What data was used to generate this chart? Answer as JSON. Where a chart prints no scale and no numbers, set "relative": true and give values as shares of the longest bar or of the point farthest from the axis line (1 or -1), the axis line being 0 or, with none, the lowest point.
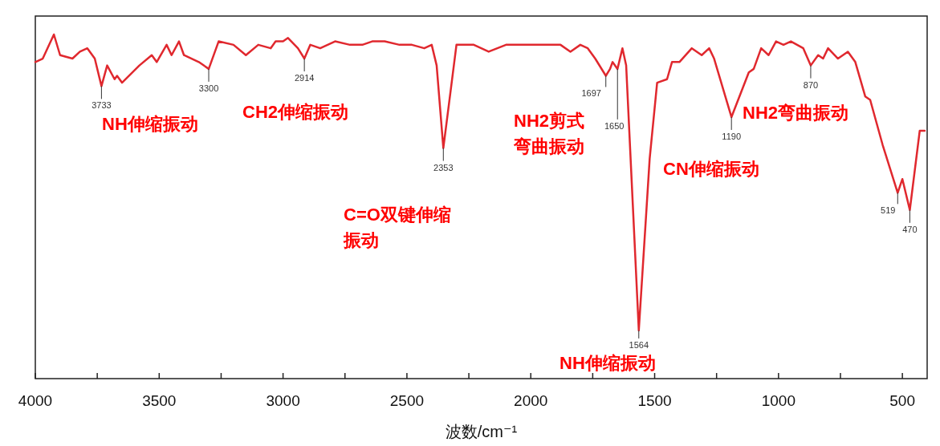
{
  "chart_data": {
    "type": "line",
    "relative": true,
    "xlabel": "波数/cm⁻¹",
    "xlim": [
      4000,
      400
    ],
    "xticks": [
      4000,
      {
        "value": 3750,
        "label": null
      },
      3500,
      {
        "value": 3250,
        "label": null
      },
      3000,
      {
        "value": 2750,
        "label": null
      },
      2500,
      {
        "value": 2250,
        "label": null
      },
      2000,
      {
        "value": 1750,
        "label": null
      },
      1500,
      {
        "value": 1250,
        "label": null
      },
      1000,
      {
        "value": 750,
        "label": null
      },
      500
    ],
    "x": [
      4000,
      3970,
      3925,
      3900,
      3850,
      3820,
      3790,
      3760,
      3733,
      3710,
      3680,
      3670,
      3650,
      3580,
      3530,
      3510,
      3470,
      3450,
      3420,
      3400,
      3340,
      3300,
      3260,
      3200,
      3150,
      3100,
      3050,
      3030,
      3000,
      2980,
      2940,
      2914,
      2890,
      2850,
      2790,
      2730,
      2680,
      2640,
      2590,
      2530,
      2480,
      2430,
      2400,
      2380,
      2353,
      2330,
      2300,
      2230,
      2170,
      2100,
      1990,
      1880,
      1840,
      1800,
      1770,
      1740,
      1697,
      1680,
      1670,
      1650,
      1630,
      1615,
      1564,
      1520,
      1490,
      1450,
      1430,
      1400,
      1350,
      1310,
      1280,
      1260,
      1190,
      1120,
      1100,
      1070,
      1040,
      1010,
      980,
      950,
      900,
      870,
      840,
      820,
      800,
      760,
      720,
      690,
      650,
      630,
      580,
      519,
      500,
      470,
      430,
      410
    ],
    "series": [
      {
        "color": "#e0282e",
        "values": [
          0.92,
          0.93,
          1.0,
          0.94,
          0.93,
          0.95,
          0.96,
          0.93,
          0.85,
          0.91,
          0.87,
          0.88,
          0.86,
          0.91,
          0.94,
          0.92,
          0.97,
          0.94,
          0.98,
          0.94,
          0.92,
          0.9,
          0.98,
          0.97,
          0.94,
          0.97,
          0.96,
          0.98,
          0.98,
          0.99,
          0.96,
          0.93,
          0.97,
          0.96,
          0.98,
          0.97,
          0.97,
          0.98,
          0.98,
          0.97,
          0.97,
          0.96,
          0.97,
          0.91,
          0.67,
          0.8,
          0.97,
          0.97,
          0.95,
          0.97,
          0.97,
          0.97,
          0.95,
          0.97,
          0.96,
          0.93,
          0.88,
          0.9,
          0.92,
          0.9,
          0.96,
          0.91,
          0.14,
          0.64,
          0.86,
          0.87,
          0.92,
          0.92,
          0.96,
          0.94,
          0.96,
          0.93,
          0.76,
          0.89,
          0.9,
          0.96,
          0.94,
          0.98,
          0.97,
          0.98,
          0.96,
          0.91,
          0.94,
          0.93,
          0.96,
          0.93,
          0.95,
          0.92,
          0.82,
          0.81,
          0.68,
          0.54,
          0.58,
          0.49,
          0.72,
          0.72
        ]
      }
    ],
    "annotations": [
      {
        "text": "3733",
        "x": 3733,
        "y": 0.85
      },
      {
        "text": "3300",
        "x": 3300,
        "y": 0.9
      },
      {
        "text": "2914",
        "x": 2914,
        "y": 0.93
      },
      {
        "text": "2353",
        "x": 2353,
        "y": 0.67
      },
      {
        "text": "1697",
        "x": 1697,
        "y": 0.88
      },
      {
        "text": "1650",
        "x": 1650,
        "y": 0.9
      },
      {
        "text": "1564",
        "x": 1564,
        "y": 0.14
      },
      {
        "text": "1190",
        "x": 1190,
        "y": 0.76
      },
      {
        "text": "870",
        "x": 870,
        "y": 0.91
      },
      {
        "text": "519",
        "x": 519,
        "y": 0.54
      },
      {
        "text": "470",
        "x": 470,
        "y": 0.49
      },
      "NH伸缩振动",
      "CH2伸缩振动",
      "C=O双键伸缩振动",
      "NH2剪式弯曲振动",
      "NH伸缩振动",
      "CN伸缩振动",
      "NH2弯曲振动"
    ]
  }
}
